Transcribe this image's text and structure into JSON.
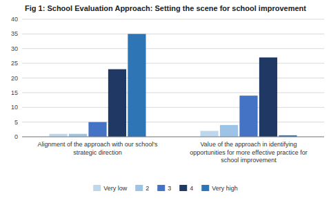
{
  "chart_data": {
    "type": "bar",
    "title": "Fig 1: School Evaluation Approach: Setting the scene for school improvement",
    "categories": [
      "Alignment of the approach with our school's\nstrategic direction",
      "Value of the approach in identifying\nopportunities for more effective practice for\nschool improvement"
    ],
    "series": [
      {
        "name": "Very low",
        "color": "#bdd7ee",
        "values": [
          1,
          2
        ]
      },
      {
        "name": "2",
        "color": "#9dc3e6",
        "values": [
          1,
          4
        ]
      },
      {
        "name": "3",
        "color": "#4472c4",
        "values": [
          5,
          14
        ]
      },
      {
        "name": "4",
        "color": "#1f3864",
        "values": [
          23,
          27
        ]
      },
      {
        "name": "Very high",
        "color": "#2e75b6",
        "values": [
          35,
          0.5
        ]
      }
    ],
    "ylim": [
      0,
      40
    ],
    "yticks": [
      0,
      5,
      10,
      15,
      20,
      25,
      30,
      35,
      40
    ],
    "grid": true,
    "legend": "bottom"
  }
}
